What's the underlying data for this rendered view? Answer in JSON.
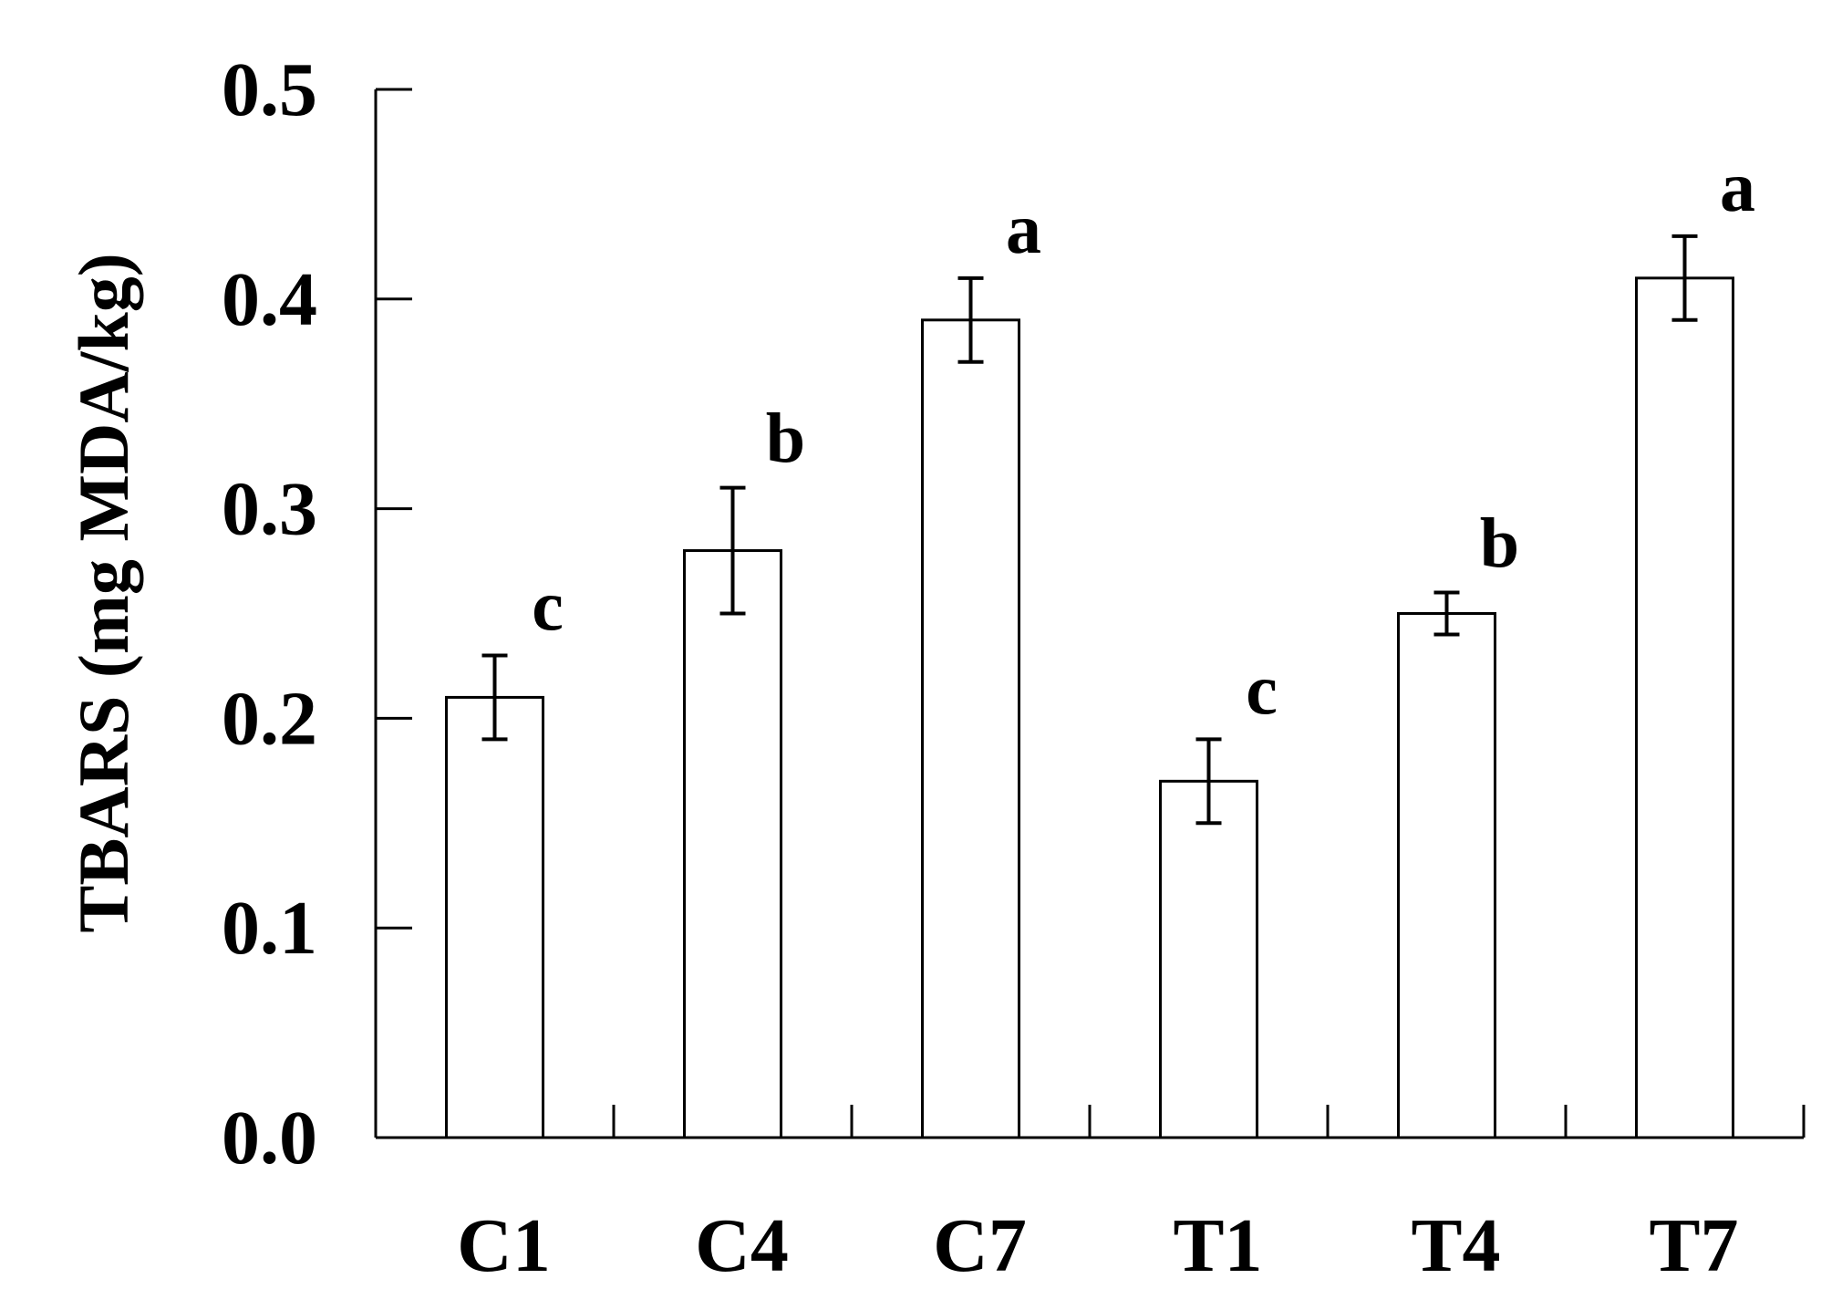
{
  "chart_data": {
    "type": "bar",
    "title": "",
    "xlabel": "",
    "ylabel": "TBARS (mg MDA/kg)",
    "ylim": [
      0,
      0.5
    ],
    "yticks": [
      "0.0",
      "0.1",
      "0.2",
      "0.3",
      "0.4",
      "0.5"
    ],
    "categories": [
      "C1",
      "C4",
      "C7",
      "T1",
      "T4",
      "T7"
    ],
    "values": [
      0.21,
      0.28,
      0.39,
      0.17,
      0.25,
      0.41
    ],
    "errors": [
      0.02,
      0.03,
      0.02,
      0.02,
      0.01,
      0.02
    ],
    "significance": [
      "c",
      "b",
      "a",
      "c",
      "b",
      "a"
    ],
    "bar_fill": "#ffffff",
    "bar_stroke": "#000000",
    "grid": false,
    "legend": "none"
  }
}
